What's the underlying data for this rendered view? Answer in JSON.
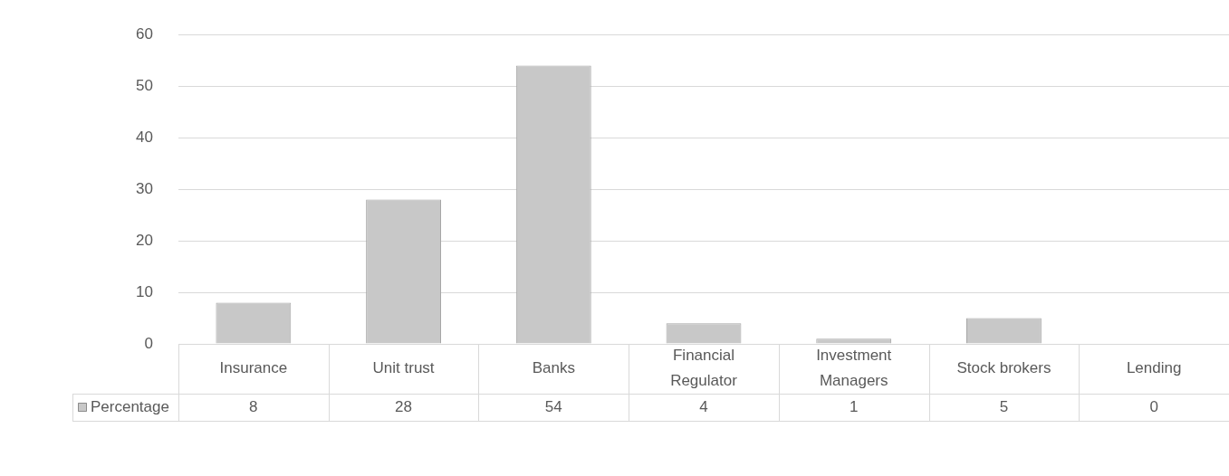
{
  "chart_data": {
    "type": "bar",
    "categories": [
      "Insurance",
      "Unit trust",
      "Banks",
      "Financial Regulator",
      "Investment Managers",
      "Stock brokers",
      "Lending"
    ],
    "series": [
      {
        "name": "Percentage",
        "color": "#c8c8c8",
        "values": [
          8,
          28,
          54,
          4,
          1,
          5,
          0
        ]
      }
    ],
    "ylim": [
      0,
      60
    ],
    "yticks": [
      0,
      10,
      20,
      30,
      40,
      50,
      60
    ],
    "grid": "y",
    "legend": "bottom left",
    "data_labels": true
  }
}
